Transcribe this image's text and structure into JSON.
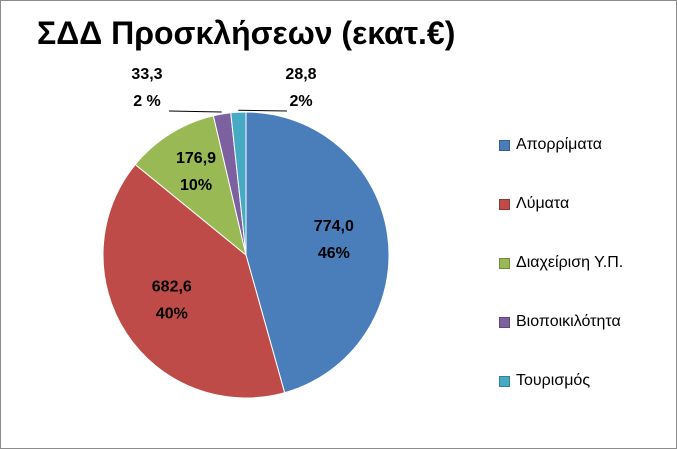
{
  "chart_data": {
    "type": "pie",
    "title": "ΣΔΔ Προσκλήσεων (εκατ.€)",
    "categories": [
      "Απορρίματα",
      "Λύματα",
      "Διαχείριση Υ.Π.",
      "Βιοποικιλότητα",
      "Τουρισμός"
    ],
    "values": [
      774.0,
      682.6,
      176.9,
      33.3,
      28.8
    ],
    "value_labels": [
      "774,0",
      "682,6",
      "176,9",
      "33,3",
      "28,8"
    ],
    "percent_labels": [
      "46%",
      "40%",
      "10%",
      "2 %",
      "2%"
    ],
    "colors": [
      "#4a7ebb",
      "#be4b48",
      "#98b954",
      "#7d60a0",
      "#46aac5"
    ],
    "legend_position": "right",
    "start_angle_deg": 0,
    "direction": "clockwise"
  }
}
